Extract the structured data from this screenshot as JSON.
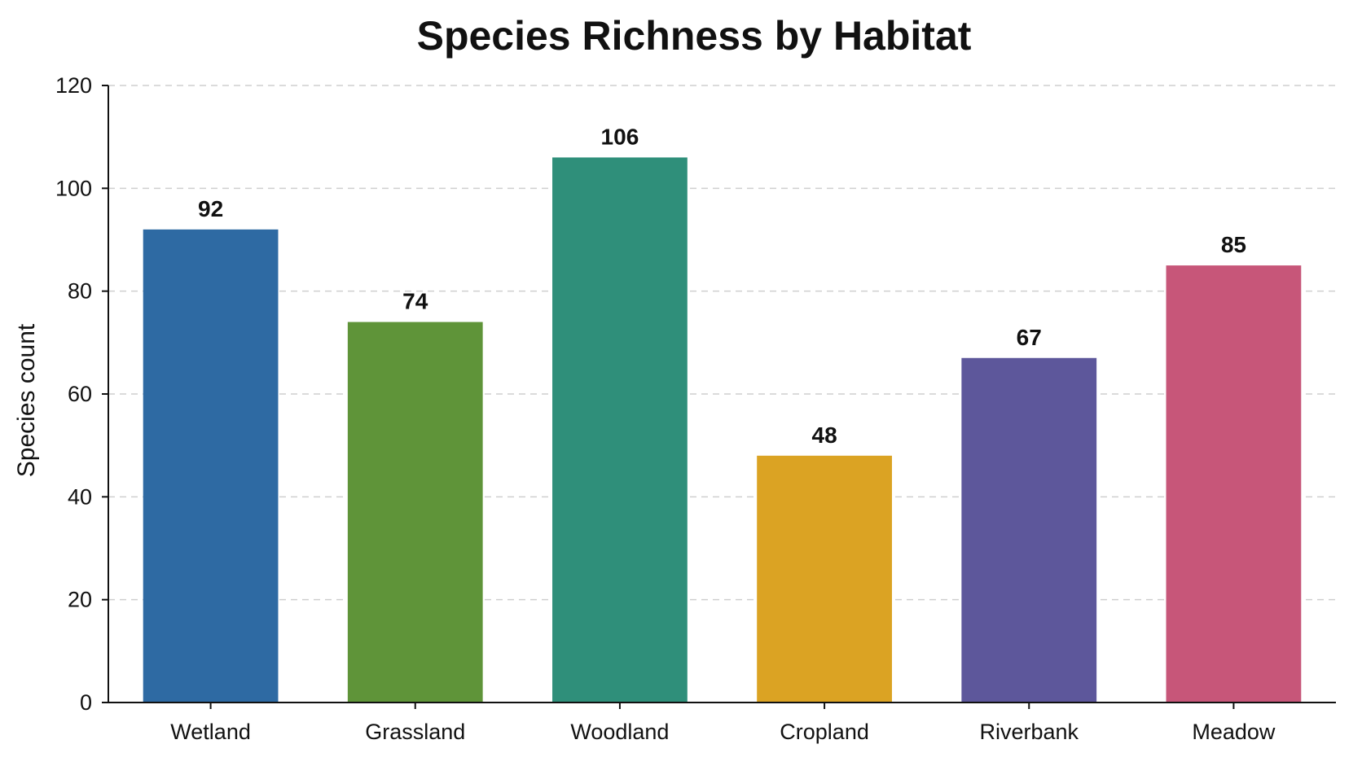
{
  "chart_data": {
    "type": "bar",
    "title": "Species Richness by Habitat",
    "xlabel": "",
    "ylabel": "Species count",
    "categories": [
      "Wetland",
      "Grassland",
      "Woodland",
      "Cropland",
      "Riverbank",
      "Meadow"
    ],
    "values": [
      92,
      74,
      106,
      48,
      67,
      85
    ],
    "data_labels": [
      "92",
      "74",
      "106",
      "48",
      "67",
      "85"
    ],
    "colors": [
      "#2e6aa3",
      "#5f9439",
      "#2f8f7a",
      "#dba323",
      "#5d579b",
      "#c75679"
    ],
    "ylim": [
      0,
      120
    ],
    "yticks": [
      0,
      20,
      40,
      60,
      80,
      100,
      120
    ],
    "ytick_labels": [
      "0",
      "20",
      "40",
      "60",
      "80",
      "100",
      "120"
    ],
    "grid": true
  }
}
